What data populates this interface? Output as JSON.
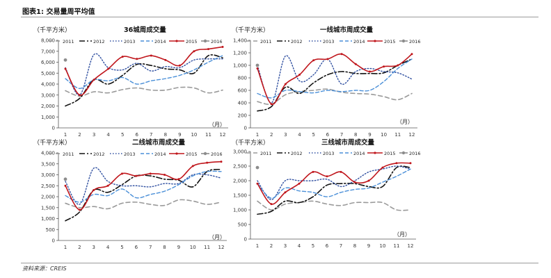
{
  "page": {
    "figure_title": "图表1: 交易量周平均值",
    "source": "资料来源：CREIS"
  },
  "chart_data": [
    {
      "type": "line",
      "title": "36城周成交量",
      "unit_label": "（千平方米）",
      "x_unit": "（月）",
      "categories": [
        "1",
        "2",
        "3",
        "4",
        "5",
        "6",
        "7",
        "8",
        "9",
        "10",
        "11",
        "12"
      ],
      "ylim": [
        0,
        8000
      ],
      "yticks": [
        0,
        1000,
        2000,
        3000,
        4000,
        5000,
        6000,
        7000,
        8000
      ],
      "ytick_labels": [
        "0",
        "1,000",
        "2,000",
        "3,000",
        "4,000",
        "5,000",
        "6,000",
        "7,000",
        "8,000"
      ],
      "legend_position": "top",
      "series": [
        {
          "name": "2011",
          "color": "#9a9a9a",
          "values": [
            3400,
            2900,
            3300,
            3200,
            3500,
            3650,
            3450,
            3450,
            3700,
            3650,
            3200,
            3450
          ]
        },
        {
          "name": "2012",
          "color": "#111111",
          "values": [
            2000,
            2700,
            4400,
            4000,
            4800,
            5800,
            5700,
            5400,
            5300,
            5000,
            6600,
            6400
          ]
        },
        {
          "name": "2013",
          "color": "#2f4fa0",
          "values": [
            5500,
            3000,
            6700,
            5500,
            5300,
            5900,
            5200,
            5600,
            5500,
            6200,
            6300,
            6300
          ]
        },
        {
          "name": "2014",
          "color": "#4a8fd8",
          "values": [
            4500,
            3600,
            4400,
            4300,
            4600,
            4000,
            4300,
            4500,
            4800,
            5300,
            6000,
            6600
          ]
        },
        {
          "name": "2015",
          "color": "#c0161c",
          "values": [
            5400,
            3000,
            4400,
            5400,
            6500,
            6300,
            6600,
            6200,
            5700,
            7000,
            7200,
            7400
          ]
        },
        {
          "name": "2016",
          "color": "#8c8c8c",
          "values": [
            6200,
            null,
            null,
            null,
            null,
            null,
            null,
            null,
            null,
            null,
            null,
            null
          ]
        }
      ]
    },
    {
      "type": "line",
      "title": "一线城市周成交量",
      "unit_label": "（千平方米）",
      "x_unit": "（月）",
      "categories": [
        "1",
        "2",
        "3",
        "4",
        "5",
        "6",
        "7",
        "8",
        "9",
        "10",
        "11",
        "12"
      ],
      "ylim": [
        0,
        1400
      ],
      "yticks": [
        0,
        200,
        400,
        600,
        800,
        1000,
        1200,
        1400
      ],
      "ytick_labels": [
        "0",
        "200",
        "400",
        "600",
        "800",
        "1,000",
        "1,200",
        "1,400"
      ],
      "legend_position": "top",
      "series": [
        {
          "name": "2011",
          "color": "#9a9a9a",
          "values": [
            420,
            380,
            530,
            580,
            600,
            620,
            570,
            550,
            540,
            500,
            450,
            550
          ]
        },
        {
          "name": "2012",
          "color": "#111111",
          "values": [
            270,
            340,
            650,
            550,
            720,
            850,
            900,
            870,
            870,
            880,
            1000,
            1100
          ]
        },
        {
          "name": "2013",
          "color": "#2f4fa0",
          "values": [
            1000,
            400,
            1150,
            750,
            850,
            1100,
            700,
            900,
            950,
            900,
            880,
            780
          ]
        },
        {
          "name": "2014",
          "color": "#4a8fd8",
          "values": [
            550,
            480,
            600,
            580,
            560,
            600,
            580,
            600,
            600,
            740,
            950,
            1100
          ]
        },
        {
          "name": "2015",
          "color": "#c0161c",
          "values": [
            950,
            380,
            700,
            850,
            1080,
            1100,
            1180,
            1020,
            900,
            980,
            1000,
            1180
          ]
        },
        {
          "name": "2016",
          "color": "#8c8c8c",
          "values": [
            1000,
            null,
            null,
            null,
            null,
            null,
            null,
            null,
            null,
            null,
            null,
            null
          ]
        }
      ]
    },
    {
      "type": "line",
      "title": "二线城市周成交量",
      "unit_label": "（千平方米）",
      "x_unit": "（月）",
      "categories": [
        "1",
        "2",
        "3",
        "4",
        "5",
        "6",
        "7",
        "8",
        "9",
        "10",
        "11",
        "12"
      ],
      "ylim": [
        0,
        4000
      ],
      "yticks": [
        0,
        500,
        1000,
        1500,
        2000,
        2500,
        3000,
        3500,
        4000
      ],
      "ytick_labels": [
        "0",
        "500",
        "1,000",
        "1,500",
        "2,000",
        "2,500",
        "3,000",
        "3,500",
        "4,000"
      ],
      "legend_position": "top",
      "series": [
        {
          "name": "2011",
          "color": "#9a9a9a",
          "values": [
            1700,
            1500,
            1550,
            1450,
            1700,
            1750,
            1650,
            1600,
            1850,
            1800,
            1650,
            1750
          ]
        },
        {
          "name": "2012",
          "color": "#111111",
          "values": [
            900,
            1300,
            2300,
            2200,
            2550,
            2950,
            2950,
            2800,
            2750,
            2450,
            3150,
            3250
          ]
        },
        {
          "name": "2013",
          "color": "#2f4fa0",
          "values": [
            2700,
            1650,
            3300,
            2700,
            2500,
            2500,
            2450,
            2600,
            2600,
            3000,
            3000,
            2850
          ]
        },
        {
          "name": "2014",
          "color": "#4a8fd8",
          "values": [
            2050,
            1750,
            2100,
            2050,
            2350,
            1950,
            2100,
            2250,
            2550,
            2950,
            3150,
            3150
          ]
        },
        {
          "name": "2015",
          "color": "#c0161c",
          "values": [
            2500,
            1400,
            2300,
            2500,
            3050,
            2950,
            3050,
            3000,
            2800,
            3400,
            3550,
            3600
          ]
        },
        {
          "name": "2016",
          "color": "#8c8c8c",
          "values": [
            2800,
            null,
            null,
            null,
            null,
            null,
            null,
            null,
            null,
            null,
            null,
            null
          ]
        }
      ]
    },
    {
      "type": "line",
      "title": "三线城市周成交量",
      "unit_label": "（千平方米）",
      "x_unit": "（月）",
      "categories": [
        "1",
        "2",
        "3",
        "4",
        "5",
        "6",
        "7",
        "8",
        "9",
        "10",
        "11",
        "12"
      ],
      "ylim": [
        0,
        3000
      ],
      "yticks": [
        0,
        500,
        1000,
        1500,
        2000,
        2500,
        3000
      ],
      "ytick_labels": [
        "0",
        "500",
        "1,000",
        "1,500",
        "2,000",
        "2,500",
        "3,000"
      ],
      "legend_position": "top",
      "series": [
        {
          "name": "2011",
          "color": "#9a9a9a",
          "values": [
            1300,
            1000,
            1200,
            1250,
            1300,
            1200,
            1150,
            1250,
            1250,
            1250,
            1000,
            1000
          ]
        },
        {
          "name": "2012",
          "color": "#111111",
          "values": [
            850,
            950,
            1300,
            1250,
            1450,
            1850,
            1900,
            1900,
            1800,
            1800,
            2450,
            2450
          ]
        },
        {
          "name": "2013",
          "color": "#2f4fa0",
          "values": [
            2000,
            1350,
            2000,
            2000,
            2000,
            2050,
            1800,
            2000,
            2300,
            2400,
            2500,
            2400
          ]
        },
        {
          "name": "2014",
          "color": "#4a8fd8",
          "values": [
            1900,
            1400,
            1750,
            1650,
            1600,
            1450,
            1600,
            1700,
            1750,
            1950,
            2150,
            2400
          ]
        },
        {
          "name": "2015",
          "color": "#c0161c",
          "values": [
            1900,
            1200,
            1600,
            1900,
            2300,
            2150,
            2300,
            1950,
            2000,
            2450,
            2600,
            2600
          ]
        },
        {
          "name": "2016",
          "color": "#8c8c8c",
          "values": [
            2450,
            null,
            null,
            null,
            null,
            null,
            null,
            null,
            null,
            null,
            null,
            null
          ]
        }
      ]
    }
  ]
}
